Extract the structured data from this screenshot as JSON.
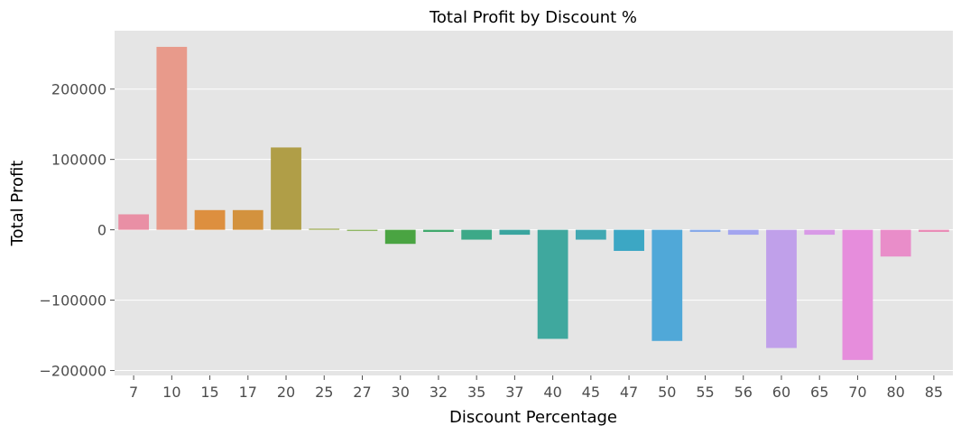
{
  "chart_data": {
    "type": "bar",
    "title": "Total Profit by Discount %",
    "xlabel": "Discount Percentage",
    "ylabel": "Total Profit",
    "categories": [
      "7",
      "10",
      "15",
      "17",
      "20",
      "25",
      "27",
      "30",
      "32",
      "35",
      "37",
      "40",
      "45",
      "47",
      "50",
      "55",
      "56",
      "60",
      "65",
      "70",
      "80",
      "85"
    ],
    "values": [
      22000,
      260000,
      28000,
      28000,
      117000,
      1500,
      -1500,
      -20000,
      -3000,
      -14000,
      -7000,
      -155000,
      -14000,
      -30000,
      -158000,
      -3000,
      -7000,
      -168000,
      -7000,
      -185000,
      -38000,
      -3000
    ],
    "colors": [
      "#e98fa5",
      "#e89a8b",
      "#dd8f3f",
      "#d3923e",
      "#b09e47",
      "#96a647",
      "#79aa44",
      "#4aa442",
      "#3ea86b",
      "#3ca988",
      "#3aa59f",
      "#3fa89e",
      "#40a8b2",
      "#3ca7c4",
      "#50a8d8",
      "#86a9e8",
      "#a3a5ef",
      "#c0a0ea",
      "#d89ae6",
      "#e68ddc",
      "#e98dc9",
      "#e98bb6"
    ],
    "ylim": [
      -207000,
      283000
    ],
    "yticks": [
      -200000,
      -100000,
      0,
      100000,
      200000
    ],
    "ytick_labels": [
      "−200000",
      "−100000",
      "0",
      "100000",
      "200000"
    ],
    "grid": true,
    "background": "#e5e5e5",
    "grid_color": "#ffffff"
  }
}
